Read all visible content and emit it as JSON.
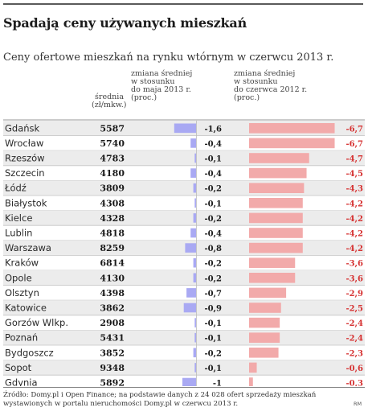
{
  "title": "Spadają ceny używanych mieszkań",
  "subtitle": "Ceny ofertowe mieszkań na rynku wtórnym w czerwcu 2013 r.",
  "headers": {
    "avg_price": "średnia\n(zł/mkw.)",
    "change_may": "zmiana średniej\nw stosunku\ndo maja 2013 r.\n(proc.)",
    "change_year": "zmiana średniej\nw stosunku\ndo czerwca 2012 r.\n(proc.)"
  },
  "source": "Źródło: Domy.pl i Open Finance; na podstawie danych z 24 028 ofert sprzedaży mieszkań wystawionych w portalu nieruchomości Domy.pl w czerwcu 2013 r.",
  "credit": "RM",
  "colors": {
    "may_bar": "#a9a9f3",
    "year_bar": "#f2aaaa",
    "year_text": "#d63333",
    "stripe": "#ececec"
  },
  "chart_data": {
    "type": "table",
    "title": "Spadają ceny używanych mieszkań",
    "subtitle": "Ceny ofertowe mieszkań na rynku wtórnym w czerwcu 2013 r.",
    "columns": [
      "średnia (zł/mkw.)",
      "zmiana średniej w stosunku do maja 2013 r. (proc.)",
      "zmiana średniej w stosunku do czerwca 2012 r. (proc.)"
    ],
    "categories": [
      "Gdańsk",
      "Wrocław",
      "Rzeszów",
      "Szczecin",
      "Łódź",
      "Białystok",
      "Kielce",
      "Lublin",
      "Warszawa",
      "Kraków",
      "Opole",
      "Olsztyn",
      "Katowice",
      "Gorzów Wlkp.",
      "Poznań",
      "Bydgoszcz",
      "Sopot",
      "Gdynia"
    ],
    "series": [
      {
        "name": "średnia (zł/mkw.)",
        "values": [
          5587,
          5740,
          4783,
          4180,
          3809,
          4308,
          4328,
          4818,
          8259,
          6814,
          4130,
          4398,
          3862,
          2908,
          5431,
          3852,
          9348,
          5892
        ]
      },
      {
        "name": "zmiana średniej w stosunku do maja 2013 r. (proc.)",
        "values": [
          -1.6,
          -0.4,
          -0.1,
          -0.4,
          -0.2,
          -0.1,
          -0.2,
          -0.4,
          -0.8,
          -0.2,
          -0.2,
          -0.7,
          -0.9,
          -0.1,
          -0.1,
          -0.2,
          -0.1,
          -1
        ]
      },
      {
        "name": "zmiana średniej w stosunku do czerwca 2012 r. (proc.)",
        "values": [
          -6.7,
          -6.7,
          -4.7,
          -4.5,
          -4.3,
          -4.2,
          -4.2,
          -4.2,
          -4.2,
          -3.6,
          -3.6,
          -2.9,
          -2.5,
          -2.4,
          -2.4,
          -2.3,
          -0.6,
          -0.3
        ]
      }
    ],
    "display": {
      "avg": [
        "5587",
        "5740",
        "4783",
        "4180",
        "3809",
        "4308",
        "4328",
        "4818",
        "8259",
        "6814",
        "4130",
        "4398",
        "3862",
        "2908",
        "5431",
        "3852",
        "9348",
        "5892"
      ],
      "may": [
        "-1,6",
        "-0,4",
        "-0,1",
        "-0,4",
        "-0,2",
        "-0,1",
        "-0,2",
        "-0,4",
        "-0,8",
        "-0,2",
        "-0,2",
        "-0,7",
        "-0,9",
        "-0,1",
        "-0,1",
        "-0,2",
        "-0,1",
        "-1"
      ],
      "year": [
        "-6,7",
        "-6,7",
        "-4,7",
        "-4,5",
        "-4,3",
        "-4,2",
        "-4,2",
        "-4,2",
        "-4,2",
        "-3,6",
        "-3,6",
        "-2,9",
        "-2,5",
        "-2,4",
        "-2,4",
        "-2,3",
        "-0,6",
        "-0,3"
      ]
    },
    "grid": true,
    "legend": "none"
  }
}
